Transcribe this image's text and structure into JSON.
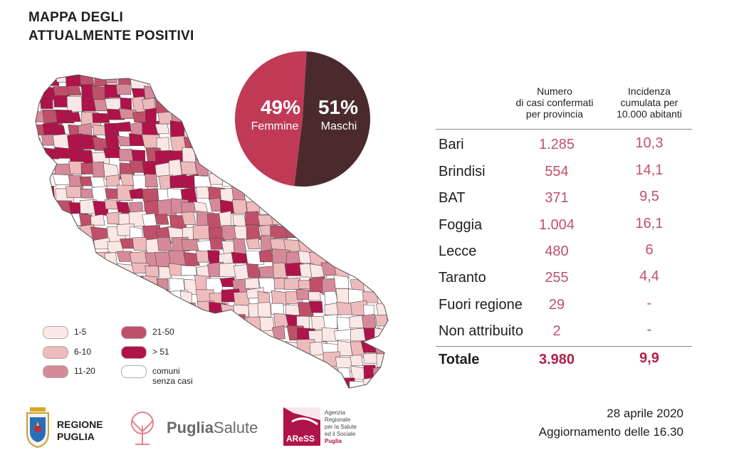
{
  "title": {
    "line1": "MAPPA DEGLI",
    "line2": "ATTUALMENTE POSITIVI"
  },
  "gender": {
    "female": {
      "pct": "49%",
      "label": "Femmine",
      "value": 49,
      "color": "#c03a56"
    },
    "male": {
      "pct": "51%",
      "label": "Maschi",
      "value": 51,
      "color": "#4b2a2e"
    }
  },
  "table": {
    "col1_line1": "Numero",
    "col1_line2": "di casi confermati",
    "col1_line3": "per provincia",
    "col2_line1": "Incidenza",
    "col2_line2": "cumulata per",
    "col2_line3": "10.000 abitanti",
    "rows": [
      {
        "name": "Bari",
        "cases": "1.285",
        "incidence": "10,3"
      },
      {
        "name": "Brindisi",
        "cases": "554",
        "incidence": "14,1"
      },
      {
        "name": "BAT",
        "cases": "371",
        "incidence": "9,5"
      },
      {
        "name": "Foggia",
        "cases": "1.004",
        "incidence": "16,1"
      },
      {
        "name": "Lecce",
        "cases": "480",
        "incidence": "6"
      },
      {
        "name": "Taranto",
        "cases": "255",
        "incidence": "4,4"
      },
      {
        "name": "Fuori regione",
        "cases": "29",
        "incidence": "-"
      },
      {
        "name": "Non attribuito",
        "cases": "2",
        "incidence": "-"
      }
    ],
    "total": {
      "name": "Totale",
      "cases": "3.980",
      "incidence": "9,9"
    }
  },
  "legend": [
    {
      "label": "1-5",
      "color": "#fbe8e6"
    },
    {
      "label": "6-10",
      "color": "#eebbbd"
    },
    {
      "label": "11-20",
      "color": "#d58a9a"
    },
    {
      "label": "21-50",
      "color": "#c0506a"
    },
    {
      "label": "> 51",
      "color": "#b0124a"
    },
    {
      "label": "comuni",
      "label2": "senza casi",
      "color": "#ffffff"
    }
  ],
  "logos": {
    "regione_line1": "REGIONE",
    "regione_line2": "PUGLIA",
    "puglia_bold": "Puglia",
    "puglia_light": "Salute",
    "aress_mark": "AReSS",
    "aress_l1": "Agenzia",
    "aress_l2": "Regionale",
    "aress_l3": "per la Salute",
    "aress_l4": "ed il Sociale",
    "aress_l5": "Puglia"
  },
  "update": {
    "date": "28 aprile 2020",
    "time": "Aggiornamento delle 16.30"
  }
}
